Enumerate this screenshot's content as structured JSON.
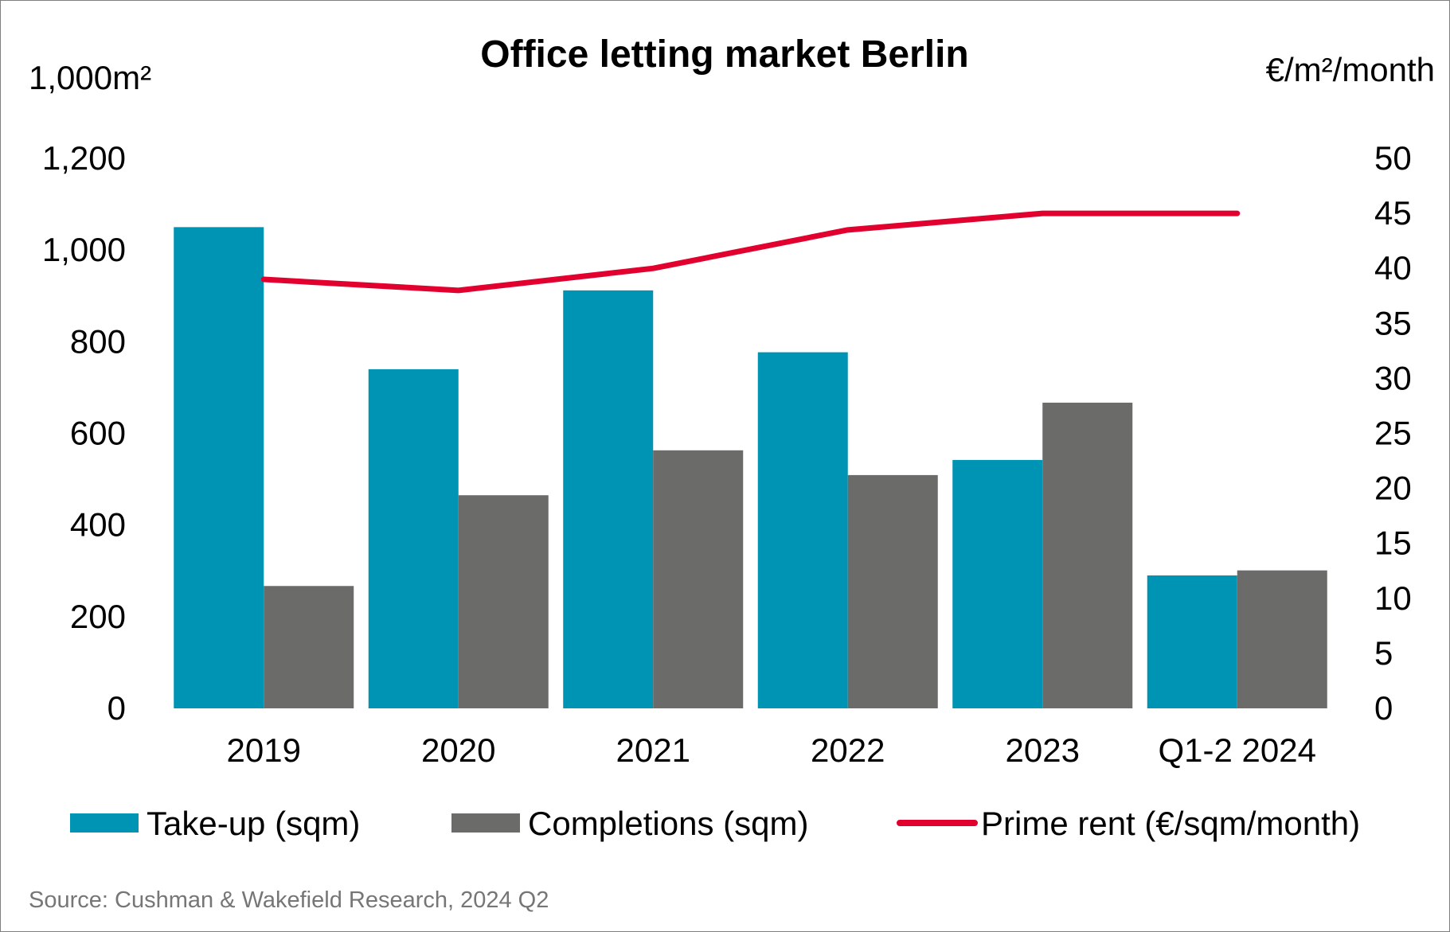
{
  "chart_data": {
    "type": "bar",
    "title": "Office letting market Berlin",
    "ylabel_left": "1,000m²",
    "ylabel_right": "€/m²/month",
    "categories": [
      "2019",
      "2020",
      "2021",
      "2022",
      "2023",
      "Q1-2 2024"
    ],
    "series": [
      {
        "name": "Take-up (sqm)",
        "kind": "bar",
        "axis": "left",
        "color": "#0094b4",
        "values": [
          1050,
          740,
          912,
          777,
          542,
          290
        ]
      },
      {
        "name": "Completions (sqm)",
        "kind": "bar",
        "axis": "left",
        "color": "#6b6c6a",
        "values": [
          267,
          465,
          563,
          509,
          667,
          301
        ]
      },
      {
        "name": "Prime rent (€/sqm/month)",
        "kind": "line",
        "axis": "right",
        "color": "#e2002e",
        "values": [
          39.0,
          38.0,
          40.0,
          43.5,
          45.0,
          45.0
        ]
      }
    ],
    "ylim_left": [
      0,
      1200
    ],
    "ylim_right": [
      0,
      50
    ],
    "yticks_left": [
      "0",
      "200",
      "400",
      "600",
      "800",
      "1,000",
      "1,200"
    ],
    "yticks_right": [
      "0",
      "5",
      "10",
      "15",
      "20",
      "25",
      "30",
      "35",
      "40",
      "45",
      "50"
    ],
    "legend": [
      "Take-up (sqm)",
      "Completions (sqm)",
      "Prime rent (€/sqm/month)"
    ],
    "legend_position": "bottom",
    "grid": false,
    "source": "Source: Cushman & Wakefield Research, 2024 Q2"
  }
}
